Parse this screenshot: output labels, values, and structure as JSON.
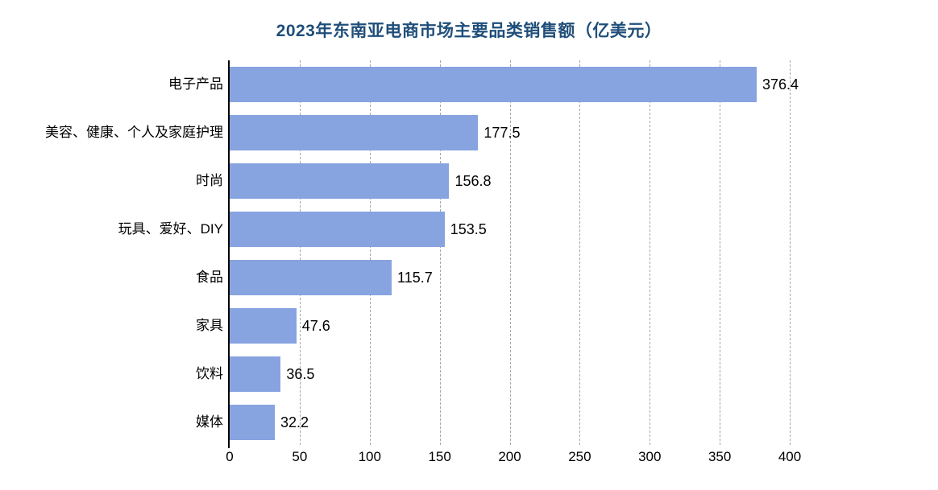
{
  "title": "2023年东南亚电商市场主要品类销售额（亿美元）",
  "colors": {
    "bar": "#87a3e0",
    "title": "#1f4e79",
    "grid": "#a6a6a6",
    "axis": "#000000",
    "text": "#000000"
  },
  "chart_data": {
    "type": "bar",
    "orientation": "horizontal",
    "title": "2023年东南亚电商市场主要品类销售额（亿美元）",
    "categories": [
      "电子产品",
      "美容、健康、个人及家庭护理",
      "时尚",
      "玩具、爱好、DIY",
      "食品",
      "家具",
      "饮料",
      "媒体"
    ],
    "values": [
      376.4,
      177.5,
      156.8,
      153.5,
      115.7,
      47.6,
      36.5,
      32.2
    ],
    "value_labels": [
      "376.4",
      "177.5",
      "156.8",
      "153.5",
      "115.7",
      "47.6",
      "36.5",
      "32.2"
    ],
    "xlabel": "",
    "ylabel": "",
    "xlim": [
      0,
      400
    ],
    "xticks": [
      0,
      50,
      100,
      150,
      200,
      250,
      300,
      350,
      400
    ],
    "grid": "dashed-vertical",
    "legend": "none",
    "bar_color": "#87a3e0"
  }
}
